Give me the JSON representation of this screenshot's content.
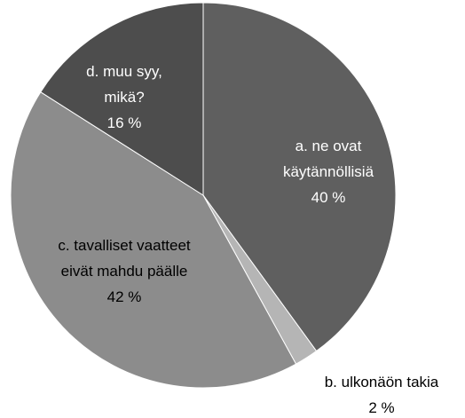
{
  "chart_data": {
    "type": "pie",
    "categories": [
      "a. ne ovat käytännöllisiä",
      "b. ulkonäön takia",
      "c. tavalliset vaatteet eivät mahdu päälle",
      "d. muu syy, mikä?"
    ],
    "values": [
      40,
      2,
      42,
      16
    ],
    "value_labels": [
      "40 %",
      "2 %",
      "42 %",
      "16 %"
    ],
    "colors": [
      "#5f5f5f",
      "#b5b5b5",
      "#8c8c8c",
      "#4d4d4d"
    ]
  }
}
